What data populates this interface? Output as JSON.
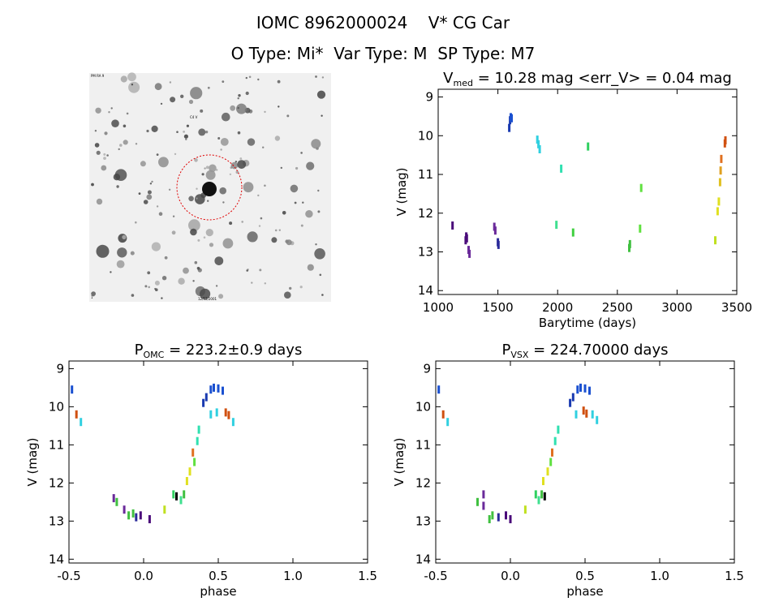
{
  "header": {
    "title": "IOMC 8962000024    V* CG Car",
    "subtitle": "O Type: Mi*  Var Type: M  SP Type: M7"
  },
  "image_panel": {
    "labels": [
      "PM RA 9",
      "C4 V",
      "1'",
      "12/12/2001"
    ]
  },
  "chart_data": [
    {
      "type": "scatter",
      "id": "lightcurve",
      "title": "V_med = 10.28 mag <err_V> = 0.04 mag",
      "title_parts": {
        "v": "V",
        "sub": "med",
        "rest": " = 10.28 mag <err_V> = 0.04 mag"
      },
      "xlabel": "Barytime (days)",
      "ylabel": "V (mag)",
      "xlim": [
        1000,
        3500
      ],
      "ylim": [
        14.1,
        8.8
      ],
      "xticks": [
        1000,
        1500,
        2000,
        2500,
        3000,
        3500
      ],
      "yticks": [
        9,
        10,
        11,
        12,
        13,
        14
      ],
      "points": [
        [
          1120,
          12.32,
          "#4a0a7a"
        ],
        [
          1230,
          12.7,
          "#4a0a7a"
        ],
        [
          1235,
          12.6,
          "#4a0a7a"
        ],
        [
          1240,
          12.65,
          "#4a0a7a"
        ],
        [
          1255,
          12.95,
          "#6a2a9a"
        ],
        [
          1262,
          13.05,
          "#6a2a9a"
        ],
        [
          1470,
          12.35,
          "#6a2a9a"
        ],
        [
          1478,
          12.45,
          "#6a2a9a"
        ],
        [
          1500,
          12.75,
          "#2a2a9a"
        ],
        [
          1505,
          12.82,
          "#2a2a9a"
        ],
        [
          1595,
          9.8,
          "#1a3ab0"
        ],
        [
          1602,
          9.6,
          "#1a3ab0"
        ],
        [
          1608,
          9.52,
          "#1a50d0"
        ],
        [
          1615,
          9.55,
          "#1a50d0"
        ],
        [
          1830,
          10.1,
          "#30d0e0"
        ],
        [
          1840,
          10.22,
          "#30d0e0"
        ],
        [
          1850,
          10.35,
          "#30d0e0"
        ],
        [
          2030,
          10.85,
          "#30e0b0"
        ],
        [
          2255,
          10.28,
          "#30d060"
        ],
        [
          1990,
          12.3,
          "#40e090"
        ],
        [
          2130,
          12.5,
          "#40d040"
        ],
        [
          2600,
          12.9,
          "#40c040"
        ],
        [
          2605,
          12.8,
          "#40c040"
        ],
        [
          2690,
          12.4,
          "#60e040"
        ],
        [
          2700,
          11.35,
          "#60e040"
        ],
        [
          3320,
          12.7,
          "#c0e020"
        ],
        [
          3340,
          11.95,
          "#e0e020"
        ],
        [
          3350,
          11.7,
          "#e0e020"
        ],
        [
          3360,
          11.2,
          "#e0c020"
        ],
        [
          3365,
          10.9,
          "#e0a020"
        ],
        [
          3370,
          10.6,
          "#e07020"
        ],
        [
          3400,
          10.2,
          "#d05010"
        ],
        [
          3405,
          10.12,
          "#d05010"
        ]
      ]
    },
    {
      "type": "scatter",
      "id": "phase_omc",
      "title": "P_OMC = 223.2±0.9 days",
      "title_parts": {
        "v": "P",
        "sub": "OMC",
        "rest": " = 223.2±0.9 days"
      },
      "xlabel": "phase",
      "ylabel": "V (mag)",
      "xlim": [
        -0.5,
        1.5
      ],
      "ylim": [
        14.1,
        8.8
      ],
      "xticks": [
        -0.5,
        0.0,
        0.5,
        1.0,
        1.5
      ],
      "yticks": [
        9,
        10,
        11,
        12,
        13,
        14
      ],
      "points": [
        [
          0.45,
          9.55,
          "#1a50d0"
        ],
        [
          0.47,
          9.5,
          "#1a50d0"
        ],
        [
          0.5,
          9.52,
          "#1a50d0"
        ],
        [
          0.53,
          9.58,
          "#1a50d0"
        ],
        [
          0.42,
          9.75,
          "#1a3ab0"
        ],
        [
          0.4,
          9.9,
          "#1a3ab0"
        ],
        [
          0.55,
          10.15,
          "#d05010"
        ],
        [
          0.57,
          10.22,
          "#d05010"
        ],
        [
          0.49,
          10.15,
          "#30d0e0"
        ],
        [
          0.6,
          10.4,
          "#30d0e0"
        ],
        [
          0.45,
          10.2,
          "#30d0e0"
        ],
        [
          0.37,
          10.6,
          "#30e0b0"
        ],
        [
          0.36,
          10.9,
          "#30e0b0"
        ],
        [
          0.33,
          11.2,
          "#e07020"
        ],
        [
          0.34,
          11.45,
          "#60e040"
        ],
        [
          0.31,
          11.7,
          "#e0e020"
        ],
        [
          0.29,
          11.95,
          "#e0e020"
        ],
        [
          0.27,
          12.3,
          "#40c040"
        ],
        [
          0.25,
          12.45,
          "#40e090"
        ],
        [
          0.2,
          12.3,
          "#30d060"
        ],
        [
          0.22,
          12.35,
          "#000000"
        ],
        [
          0.14,
          12.7,
          "#c0e020"
        ],
        [
          0.04,
          12.95,
          "#4a0a7a"
        ],
        [
          -0.02,
          12.85,
          "#4a0a7a"
        ],
        [
          -0.05,
          12.9,
          "#2a2a9a"
        ],
        [
          -0.07,
          12.8,
          "#40c040"
        ],
        [
          -0.1,
          12.85,
          "#40c040"
        ],
        [
          -0.13,
          12.7,
          "#6a2a9a"
        ],
        [
          -0.18,
          12.5,
          "#40c040"
        ],
        [
          -0.2,
          12.4,
          "#6a2a9a"
        ],
        [
          -0.45,
          10.2,
          "#d05010"
        ],
        [
          -0.48,
          9.55,
          "#1a50d0"
        ],
        [
          -0.42,
          10.4,
          "#30d0e0"
        ]
      ]
    },
    {
      "type": "scatter",
      "id": "phase_vsx",
      "title": "P_VSX = 224.70000 days",
      "title_parts": {
        "v": "P",
        "sub": "VSX",
        "rest": " = 224.70000 days"
      },
      "xlabel": "phase",
      "ylabel": "V (mag)",
      "xlim": [
        -0.5,
        1.5
      ],
      "ylim": [
        14.1,
        8.8
      ],
      "xticks": [
        -0.5,
        0.0,
        0.5,
        1.0,
        1.5
      ],
      "yticks": [
        9,
        10,
        11,
        12,
        13,
        14
      ],
      "points": [
        [
          0.45,
          9.55,
          "#1a50d0"
        ],
        [
          0.47,
          9.5,
          "#1a50d0"
        ],
        [
          0.5,
          9.52,
          "#1a50d0"
        ],
        [
          0.53,
          9.58,
          "#1a50d0"
        ],
        [
          0.42,
          9.75,
          "#1a3ab0"
        ],
        [
          0.4,
          9.9,
          "#1a3ab0"
        ],
        [
          0.49,
          10.1,
          "#d05010"
        ],
        [
          0.51,
          10.18,
          "#d05010"
        ],
        [
          0.55,
          10.2,
          "#30d0e0"
        ],
        [
          0.58,
          10.35,
          "#30d0e0"
        ],
        [
          0.44,
          10.2,
          "#30d0e0"
        ],
        [
          0.32,
          10.6,
          "#30e0b0"
        ],
        [
          0.3,
          10.9,
          "#30e0b0"
        ],
        [
          0.28,
          11.2,
          "#e07020"
        ],
        [
          0.27,
          11.45,
          "#60e040"
        ],
        [
          0.25,
          11.7,
          "#e0e020"
        ],
        [
          0.22,
          11.95,
          "#e0e020"
        ],
        [
          0.21,
          12.3,
          "#40c040"
        ],
        [
          0.19,
          12.45,
          "#40e090"
        ],
        [
          0.17,
          12.3,
          "#30d060"
        ],
        [
          0.23,
          12.35,
          "#000000"
        ],
        [
          0.1,
          12.7,
          "#c0e020"
        ],
        [
          0.0,
          12.95,
          "#4a0a7a"
        ],
        [
          -0.03,
          12.85,
          "#4a0a7a"
        ],
        [
          -0.08,
          12.9,
          "#2a2a9a"
        ],
        [
          -0.12,
          12.85,
          "#40c040"
        ],
        [
          -0.14,
          12.95,
          "#40c040"
        ],
        [
          -0.18,
          12.6,
          "#6a2a9a"
        ],
        [
          -0.22,
          12.5,
          "#40c040"
        ],
        [
          -0.18,
          12.3,
          "#6a2a9a"
        ],
        [
          -0.45,
          10.2,
          "#d05010"
        ],
        [
          -0.48,
          9.55,
          "#1a50d0"
        ],
        [
          -0.42,
          10.4,
          "#30d0e0"
        ]
      ]
    }
  ]
}
